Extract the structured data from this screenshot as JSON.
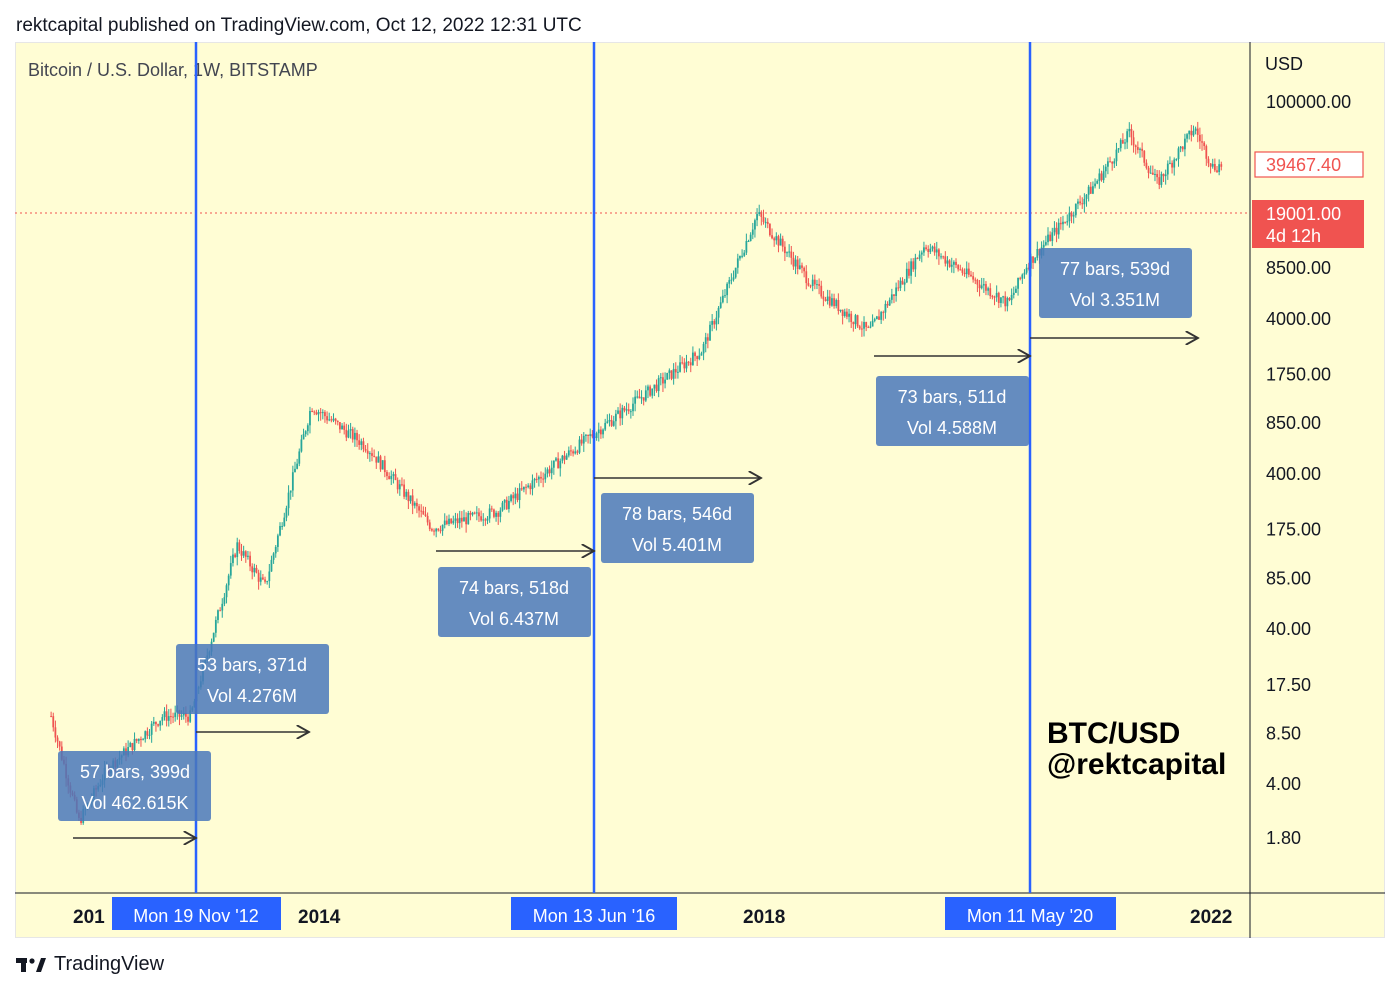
{
  "header": {
    "publish_line": "rektcapital published on TradingView.com, Oct 12, 2022 12:31 UTC"
  },
  "symbol_line": "Bitcoin / U.S. Dollar, 1W, BITSTAMP",
  "footer": {
    "brand": "TradingView"
  },
  "watermark": {
    "line1": "BTC/USD",
    "line2": "@rektcapital"
  },
  "colors": {
    "background": "#fffdd4",
    "bull": "#26a69a",
    "bear": "#ef5350",
    "vline": "#2962ff",
    "label_box": "#5b84bf",
    "price_tag": "#f05350"
  },
  "chart_data": {
    "type": "candlestick",
    "title": "Bitcoin / U.S. Dollar, 1W, BITSTAMP",
    "y_axis": {
      "unit": "USD",
      "scale": "log",
      "ticks": [
        "100000.00",
        "8500.00",
        "4000.00",
        "1750.00",
        "850.00",
        "400.00",
        "175.00",
        "85.00",
        "40.00",
        "17.50",
        "8.50",
        "4.00",
        "1.80"
      ]
    },
    "x_axis": {
      "ticks": [
        "201",
        "2014",
        "2018",
        "2022"
      ],
      "highlighted_dates": [
        "Mon 19 Nov '12",
        "Mon 13 Jun '16",
        "Mon 11 May '20"
      ]
    },
    "price_tags": [
      {
        "value": "39467.40",
        "style": "outline"
      },
      {
        "value": "19001.00",
        "sub": "4d 12h",
        "style": "filled"
      }
    ],
    "measure_boxes": [
      {
        "bars_text": "57 bars, 399d",
        "vol_text": "Vol 462.615K"
      },
      {
        "bars_text": "53 bars, 371d",
        "vol_text": "Vol 4.276M"
      },
      {
        "bars_text": "74 bars, 518d",
        "vol_text": "Vol 6.437M"
      },
      {
        "bars_text": "78 bars, 546d",
        "vol_text": "Vol 5.401M"
      },
      {
        "bars_text": "73 bars, 511d",
        "vol_text": "Vol 4.588M"
      },
      {
        "bars_text": "77 bars, 539d",
        "vol_text": "Vol 3.351M"
      }
    ],
    "price_path": [
      {
        "date": "2011-08",
        "price": 11
      },
      {
        "date": "2011-11",
        "price": 2.3
      },
      {
        "date": "2012-02",
        "price": 5
      },
      {
        "date": "2012-08",
        "price": 11
      },
      {
        "date": "2012-11",
        "price": 11
      },
      {
        "date": "2013-04",
        "price": 140
      },
      {
        "date": "2013-07",
        "price": 75
      },
      {
        "date": "2013-12",
        "price": 1100
      },
      {
        "date": "2014-06",
        "price": 600
      },
      {
        "date": "2015-01",
        "price": 180
      },
      {
        "date": "2015-08",
        "price": 230
      },
      {
        "date": "2016-06",
        "price": 700
      },
      {
        "date": "2017-06",
        "price": 2500
      },
      {
        "date": "2017-12",
        "price": 19000
      },
      {
        "date": "2018-06",
        "price": 6500
      },
      {
        "date": "2018-12",
        "price": 3300
      },
      {
        "date": "2019-06",
        "price": 12000
      },
      {
        "date": "2020-03",
        "price": 5000
      },
      {
        "date": "2020-05",
        "price": 9000
      },
      {
        "date": "2020-12",
        "price": 28000
      },
      {
        "date": "2021-04",
        "price": 63000
      },
      {
        "date": "2021-07",
        "price": 30000
      },
      {
        "date": "2021-11",
        "price": 68000
      },
      {
        "date": "2022-01",
        "price": 38000
      },
      {
        "date": "2022-02",
        "price": 39467
      }
    ]
  }
}
